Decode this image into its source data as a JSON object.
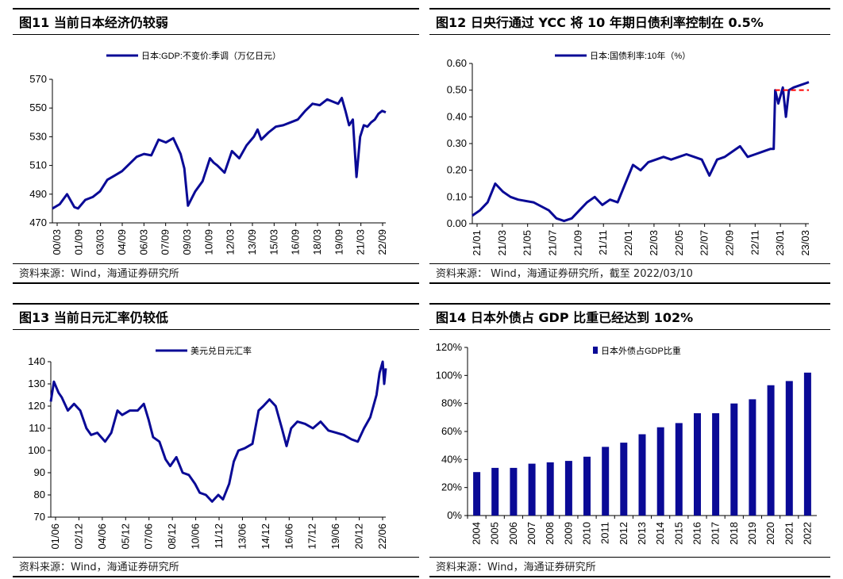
{
  "panels": {
    "p11": {
      "title": "图11 当前日本经济仍较弱",
      "source": "资料来源：Wind，海通证券研究所"
    },
    "p12": {
      "title": "图12 日央行通过 YCC 将 10 年期日债利率控制在 0.5%",
      "source": "资料来源：  Wind，海通证券研究所，截至 2022/03/10"
    },
    "p13": {
      "title": "图13 当前日元汇率仍较低",
      "source": "资料来源：Wind，海通证券研究所"
    },
    "p14": {
      "title": "图14 日本外债占 GDP 比重已经达到 102%",
      "source": "资料来源：Wind，海通证券研究所"
    }
  },
  "colors": {
    "series": "#0a0a96",
    "cap": "#ff0000",
    "axis": "#000000"
  },
  "chart_data": [
    {
      "id": "c11",
      "type": "line",
      "title": "当前日本经济仍较弱",
      "legend": "日本:GDP:不变价:季调（万亿日元）",
      "ylim": [
        470,
        570
      ],
      "yticks": [
        470,
        490,
        510,
        530,
        550,
        570
      ],
      "x_range": [
        2000.0,
        2022.75
      ],
      "xticks": [
        "00/03",
        "01/09",
        "03/03",
        "04/09",
        "06/03",
        "07/09",
        "09/03",
        "10/09",
        "12/03",
        "13/09",
        "15/03",
        "16/09",
        "18/03",
        "19/09",
        "21/03",
        "22/09"
      ],
      "series": [
        {
          "name": "日本:GDP:不变价:季调（万亿日元）",
          "x": [
            2000.0,
            2000.5,
            2001.0,
            2001.5,
            2001.75,
            2002.25,
            2002.75,
            2003.25,
            2003.75,
            2004.25,
            2004.75,
            2005.25,
            2005.75,
            2006.25,
            2006.75,
            2007.25,
            2007.75,
            2008.25,
            2008.75,
            2009.0,
            2009.25,
            2009.75,
            2010.25,
            2010.75,
            2011.0,
            2011.25,
            2011.75,
            2012.25,
            2012.75,
            2013.25,
            2013.75,
            2014.0,
            2014.25,
            2014.75,
            2015.25,
            2015.75,
            2016.25,
            2016.75,
            2017.25,
            2017.75,
            2018.25,
            2018.75,
            2019.25,
            2019.5,
            2019.75,
            2020.0,
            2020.25,
            2020.5,
            2020.75,
            2021.0,
            2021.25,
            2021.5,
            2021.75,
            2022.0,
            2022.25,
            2022.5,
            2022.75
          ],
          "y": [
            480,
            483,
            490,
            481,
            480,
            486,
            488,
            492,
            500,
            503,
            506,
            511,
            516,
            518,
            517,
            528,
            526,
            529,
            518,
            508,
            482,
            492,
            499,
            515,
            512,
            510,
            505,
            520,
            515,
            524,
            530,
            535,
            528,
            533,
            537,
            538,
            540,
            542,
            548,
            553,
            552,
            556,
            554,
            553,
            557,
            548,
            538,
            542,
            502,
            530,
            538,
            537,
            540,
            542,
            546,
            548,
            547
          ]
        }
      ]
    },
    {
      "id": "c12",
      "type": "line",
      "title": "日央行通过 YCC 将 10 年期日债利率控制在 0.5%",
      "legend": "日本:国债利率:10年（%）",
      "ylim": [
        0.0,
        0.6
      ],
      "yticks": [
        "0.00",
        "0.10",
        "0.20",
        "0.30",
        "0.40",
        "0.50",
        "0.60"
      ],
      "x_range": [
        2021.0,
        2023.2
      ],
      "xticks": [
        "21/01",
        "21/03",
        "21/05",
        "21/07",
        "21/09",
        "21/11",
        "22/01",
        "22/03",
        "22/05",
        "22/07",
        "22/09",
        "22/11",
        "23/01",
        "23/03"
      ],
      "cap_line": {
        "value": 0.5,
        "x_from": 2022.98,
        "x_to": 2023.2
      },
      "series": [
        {
          "name": "日本:国债利率:10年（%）",
          "x": [
            2021.0,
            2021.05,
            2021.1,
            2021.15,
            2021.2,
            2021.25,
            2021.3,
            2021.4,
            2021.5,
            2021.55,
            2021.6,
            2021.65,
            2021.7,
            2021.75,
            2021.8,
            2021.85,
            2021.9,
            2021.95,
            2022.0,
            2022.05,
            2022.1,
            2022.15,
            2022.2,
            2022.25,
            2022.3,
            2022.35,
            2022.4,
            2022.45,
            2022.5,
            2022.55,
            2022.6,
            2022.65,
            2022.7,
            2022.75,
            2022.8,
            2022.85,
            2022.9,
            2022.95,
            2022.97,
            2022.98,
            2023.0,
            2023.03,
            2023.05,
            2023.07,
            2023.1,
            2023.15,
            2023.2
          ],
          "y": [
            0.03,
            0.05,
            0.08,
            0.15,
            0.12,
            0.1,
            0.09,
            0.08,
            0.05,
            0.02,
            0.01,
            0.02,
            0.05,
            0.08,
            0.1,
            0.07,
            0.09,
            0.08,
            0.15,
            0.22,
            0.2,
            0.23,
            0.24,
            0.25,
            0.24,
            0.25,
            0.26,
            0.25,
            0.24,
            0.18,
            0.24,
            0.25,
            0.27,
            0.29,
            0.25,
            0.26,
            0.27,
            0.28,
            0.28,
            0.5,
            0.45,
            0.51,
            0.4,
            0.5,
            0.51,
            0.52,
            0.53
          ]
        }
      ]
    },
    {
      "id": "c13",
      "type": "line",
      "title": "当前日元汇率仍较低",
      "legend": "美元兑日元汇率",
      "ylim": [
        70,
        140
      ],
      "yticks": [
        70,
        80,
        90,
        100,
        110,
        120,
        130,
        140
      ],
      "x_range": [
        2001.4,
        2023.0
      ],
      "xticks": [
        "01/06",
        "02/12",
        "04/06",
        "05/12",
        "07/06",
        "08/12",
        "10/06",
        "11/12",
        "13/06",
        "14/12",
        "16/06",
        "17/12",
        "19/06",
        "20/12",
        "22/06"
      ],
      "series": [
        {
          "name": "美元兑日元汇率",
          "x": [
            2001.4,
            2001.6,
            2001.9,
            2002.1,
            2002.5,
            2002.9,
            2003.3,
            2003.7,
            2004.0,
            2004.4,
            2004.9,
            2005.3,
            2005.7,
            2006.0,
            2006.5,
            2007.0,
            2007.4,
            2007.7,
            2008.0,
            2008.4,
            2008.8,
            2009.1,
            2009.5,
            2009.9,
            2010.3,
            2010.7,
            2011.0,
            2011.4,
            2011.8,
            2012.2,
            2012.5,
            2012.9,
            2013.2,
            2013.5,
            2013.9,
            2014.4,
            2014.8,
            2015.1,
            2015.5,
            2015.9,
            2016.3,
            2016.6,
            2016.9,
            2017.3,
            2017.8,
            2018.3,
            2018.8,
            2019.3,
            2019.8,
            2020.3,
            2020.8,
            2021.2,
            2021.6,
            2022.0,
            2022.4,
            2022.6,
            2022.8,
            2022.9,
            2023.0
          ],
          "y": [
            122,
            131,
            126,
            124,
            118,
            121,
            118,
            110,
            107,
            108,
            104,
            108,
            118,
            116,
            118,
            118,
            121,
            114,
            106,
            104,
            96,
            93,
            97,
            90,
            89,
            85,
            81,
            80,
            77,
            80,
            78,
            85,
            95,
            100,
            101,
            103,
            118,
            120,
            123,
            120,
            110,
            102,
            110,
            113,
            112,
            110,
            113,
            109,
            108,
            107,
            105,
            104,
            110,
            115,
            125,
            135,
            140,
            130,
            137
          ]
        }
      ]
    },
    {
      "id": "c14",
      "type": "bar",
      "title": "日本外债占 GDP 比重已经达到 102%",
      "legend": "日本外债占GDP比重",
      "ylim": [
        0,
        120
      ],
      "yticks": [
        "0%",
        "20%",
        "40%",
        "60%",
        "80%",
        "100%",
        "120%"
      ],
      "categories": [
        "2004",
        "2005",
        "2006",
        "2007",
        "2008",
        "2009",
        "2010",
        "2011",
        "2012",
        "2013",
        "2014",
        "2015",
        "2016",
        "2017",
        "2018",
        "2019",
        "2020",
        "2021",
        "2022"
      ],
      "values": [
        31,
        34,
        34,
        37,
        38,
        39,
        42,
        49,
        52,
        58,
        63,
        66,
        73,
        73,
        80,
        83,
        93,
        96,
        102
      ]
    }
  ]
}
